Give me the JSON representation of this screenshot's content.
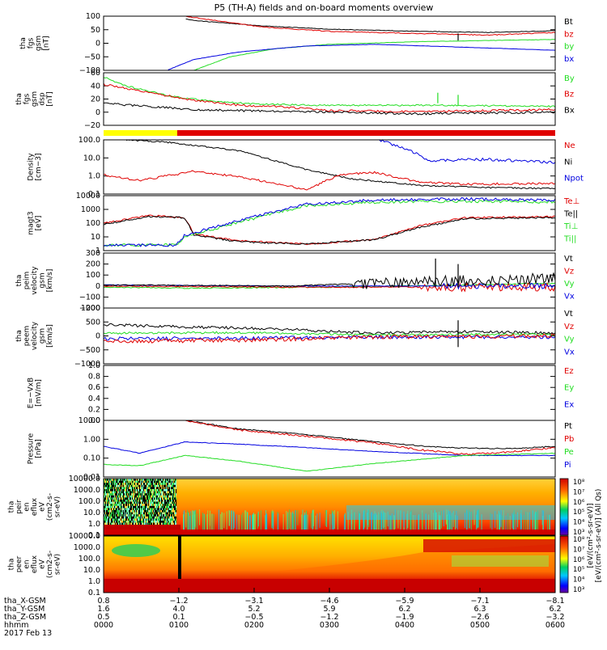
{
  "chart_data": {
    "title": "P5 (TH-A) fields and on-board moments overview",
    "type": "line",
    "colors": {
      "black": "#000000",
      "red": "#e00000",
      "green": "#22dd22",
      "blue": "#0000e0",
      "yellow": "#ffff00"
    },
    "panels": [
      {
        "ylabel": [
          "tha",
          "fgs",
          "gsm",
          "[nT]"
        ],
        "yticks": [
          "100",
          "50",
          "0",
          "−50",
          "−100"
        ],
        "scale": "linear",
        "ylim": [
          -100,
          100
        ],
        "legend": [
          {
            "name": "Bt",
            "color": "#000000"
          },
          {
            "name": "bz",
            "color": "#e00000"
          },
          {
            "name": "by",
            "color": "#22dd22"
          },
          {
            "name": "bx",
            "color": "#0000e0"
          }
        ]
      },
      {
        "ylabel": [
          "tha",
          "fgs",
          "gsm",
          "dsp",
          "[nT]"
        ],
        "yticks": [
          "60",
          "40",
          "20",
          "0",
          "−20"
        ],
        "scale": "linear",
        "ylim": [
          -30,
          60
        ],
        "legend": [
          {
            "name": "By",
            "color": "#22dd22"
          },
          {
            "name": "Bz",
            "color": "#e00000"
          },
          {
            "name": "Bx",
            "color": "#000000"
          }
        ]
      },
      {
        "ylabel": [
          "Density",
          "[cm−3]"
        ],
        "yticks": [
          "100.0",
          "10.0",
          "1.0",
          "0.1"
        ],
        "scale": "log",
        "ylim": [
          0.1,
          300
        ],
        "legend": [
          {
            "name": "Ne",
            "color": "#e00000"
          },
          {
            "name": "Ni",
            "color": "#000000"
          },
          {
            "name": "Npot",
            "color": "#0000e0"
          }
        ]
      },
      {
        "ylabel": [
          "magt3",
          "[eV]"
        ],
        "yticks": [
          "10000",
          "1000",
          "100",
          "10",
          "1"
        ],
        "scale": "log",
        "ylim": [
          1,
          10000
        ],
        "legend": [
          {
            "name": "Te⊥",
            "color": "#e00000"
          },
          {
            "name": "Te||",
            "color": "#000000"
          },
          {
            "name": "Ti⊥",
            "color": "#22dd22"
          },
          {
            "name": "Ti||",
            "color": "#22dd22"
          }
        ]
      },
      {
        "ylabel": [
          "tha",
          "peim",
          "velocity",
          "gsm",
          "[km/s]"
        ],
        "yticks": [
          "300",
          "200",
          "100",
          "0",
          "−100",
          "−200"
        ],
        "scale": "linear",
        "ylim": [
          -200,
          300
        ],
        "legend": [
          {
            "name": "Vt",
            "color": "#000000"
          },
          {
            "name": "Vz",
            "color": "#e00000"
          },
          {
            "name": "Vy",
            "color": "#22dd22"
          },
          {
            "name": "Vx",
            "color": "#0000e0"
          }
        ]
      },
      {
        "ylabel": [
          "tha",
          "peem",
          "velocity",
          "gsm",
          "[km/s]"
        ],
        "yticks": [
          "1000",
          "500",
          "0",
          "−500",
          "−1000"
        ],
        "scale": "linear",
        "ylim": [
          -1000,
          1000
        ],
        "legend": [
          {
            "name": "Vt",
            "color": "#000000"
          },
          {
            "name": "Vz",
            "color": "#e00000"
          },
          {
            "name": "Vy",
            "color": "#22dd22"
          },
          {
            "name": "Vx",
            "color": "#0000e0"
          }
        ]
      },
      {
        "ylabel": [
          "E=−VxB",
          "[mV/m]"
        ],
        "yticks": [
          "1.0",
          "0.8",
          "0.6",
          "0.4",
          "0.2",
          "0.0"
        ],
        "scale": "linear",
        "ylim": [
          0,
          1
        ],
        "legend": [
          {
            "name": "Ez",
            "color": "#e00000"
          },
          {
            "name": "Ey",
            "color": "#22dd22"
          },
          {
            "name": "Ex",
            "color": "#0000e0"
          }
        ]
      },
      {
        "ylabel": [
          "Pressure",
          "[nPa]"
        ],
        "yticks": [
          "10.00",
          "1.00",
          "0.10",
          "0.01"
        ],
        "scale": "log",
        "ylim": [
          0.005,
          20
        ],
        "legend": [
          {
            "name": "Pt",
            "color": "#000000"
          },
          {
            "name": "Pb",
            "color": "#e00000"
          },
          {
            "name": "Pe",
            "color": "#22dd22"
          },
          {
            "name": "Pi",
            "color": "#0000e0"
          }
        ]
      },
      {
        "ylabel": [
          "tha",
          "peir",
          "en",
          "eflux",
          "eV",
          "(cm2-s-",
          "sr-eV)"
        ],
        "yticks": [
          "10000.0",
          "1000.0",
          "100.0",
          "10.0",
          "1.0",
          "0.1"
        ],
        "scale": "log",
        "spectrogram": true
      },
      {
        "ylabel": [
          "tha",
          "peer",
          "en",
          "eflux",
          "eV",
          "(cm2-s-",
          "sr-eV)"
        ],
        "yticks": [
          "10000.0",
          "1000.0",
          "100.0",
          "10.0",
          "1.0",
          "0.1"
        ],
        "scale": "log",
        "spectrogram": true
      }
    ],
    "colorbar": {
      "ticks": [
        "10⁸",
        "10⁷",
        "10⁶",
        "10⁵",
        "10⁴",
        "10³"
      ],
      "label1": "[eV/(cm²-s-sr-eV)]",
      "label2": "[eV/(cm²-s-sr-eV)] (All Qs)"
    },
    "xaxis": {
      "rows": [
        {
          "label": "tha_X-GSM",
          "values": [
            "0.8",
            "−1.2",
            "−3.1",
            "−4.6",
            "−5.9",
            "−7.1",
            "−8.1"
          ]
        },
        {
          "label": "tha_Y-GSM",
          "values": [
            "1.6",
            "4.0",
            "5.2",
            "5.9",
            "6.2",
            "6.3",
            "6.2"
          ]
        },
        {
          "label": "tha_Z-GSM",
          "values": [
            "0.5",
            "0.1",
            "−0.5",
            "−1.2",
            "−1.9",
            "−2.6",
            "−3.2"
          ]
        },
        {
          "label": "hhmm",
          "values": [
            "0000",
            "0100",
            "0200",
            "0300",
            "0400",
            "0500",
            "0600"
          ]
        }
      ],
      "date": "2017 Feb 13"
    },
    "mode_bar": [
      {
        "color": "#ffff00",
        "from": 0,
        "to": 0.163
      },
      {
        "color": "#e00000",
        "from": 0.163,
        "to": 1
      }
    ]
  }
}
